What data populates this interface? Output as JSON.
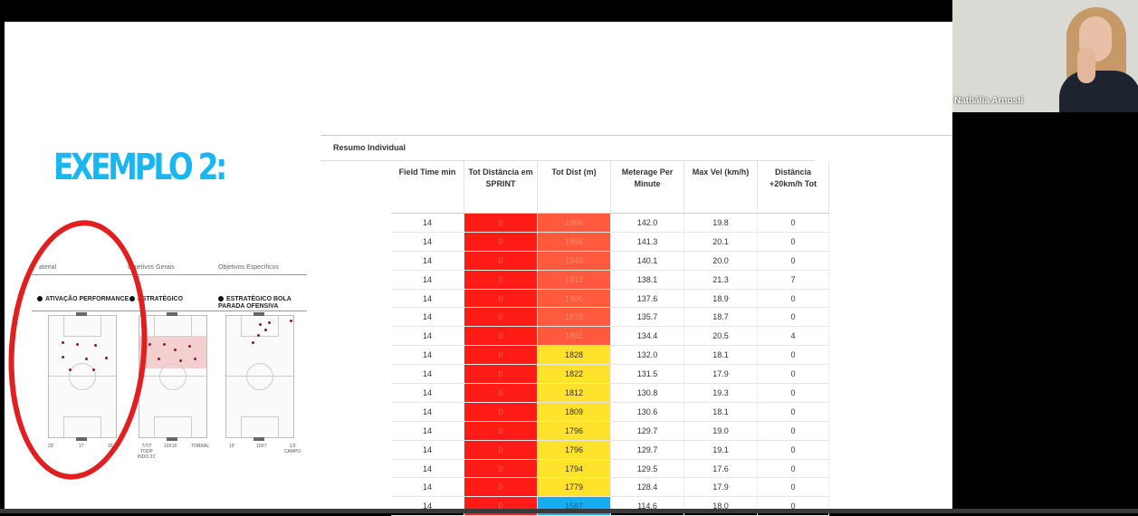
{
  "slide": {
    "title": "EXEMPLO 2:",
    "board": {
      "headers": [
        "aterial",
        "Objetivos Gerais",
        "Objetivos Específicos"
      ],
      "sections": [
        "ATIVAÇÃO PERFORMANCE",
        "ESTRATÉGICO",
        "ESTRATÉGICO BOLA PARADA OFENSIVA"
      ],
      "footer": [
        "20'",
        "17",
        "15'",
        "7/7/7 TODP INDO 21'",
        "10X10",
        "TORRAL",
        "15'",
        "10X7",
        "1/3 CAMPO"
      ]
    },
    "table": {
      "title": "Resumo Individual",
      "columns": [
        "Field Time min",
        "Tot Distância em SPRINT",
        "Tot Dist (m)",
        "Meterage Per Minute",
        "Max Vel (km/h)",
        "Distância +20km/h Tot"
      ],
      "rows": [
        [
          "14",
          "0",
          "1986",
          "142.0",
          "19.8",
          "0"
        ],
        [
          "14",
          "0",
          "1956",
          "141.3",
          "20.1",
          "0"
        ],
        [
          "14",
          "0",
          "1940",
          "140.1",
          "20.0",
          "0"
        ],
        [
          "14",
          "0",
          "1912",
          "138.1",
          "21.3",
          "7"
        ],
        [
          "14",
          "0",
          "1906",
          "137.6",
          "18.9",
          "0"
        ],
        [
          "14",
          "0",
          "1878",
          "135.7",
          "18.7",
          "0"
        ],
        [
          "14",
          "0",
          "1861",
          "134.4",
          "20.5",
          "4"
        ],
        [
          "14",
          "0",
          "1828",
          "132.0",
          "18.1",
          "0"
        ],
        [
          "14",
          "0",
          "1822",
          "131.5",
          "17.9",
          "0"
        ],
        [
          "14",
          "0",
          "1812",
          "130.8",
          "19.3",
          "0"
        ],
        [
          "14",
          "0",
          "1809",
          "130.6",
          "18.1",
          "0"
        ],
        [
          "14",
          "0",
          "1796",
          "129.7",
          "19.0",
          "0"
        ],
        [
          "14",
          "0",
          "1796",
          "129.7",
          "19.1",
          "0"
        ],
        [
          "14",
          "0",
          "1794",
          "129.5",
          "17.6",
          "0"
        ],
        [
          "14",
          "0",
          "1779",
          "128.4",
          "17.9",
          "0"
        ],
        [
          "14",
          "0",
          "1587",
          "114.6",
          "18.0",
          "0"
        ]
      ],
      "dist_colors": [
        "salmon",
        "salmon",
        "salmon",
        "salmon",
        "salmon",
        "salmon",
        "salmon",
        "yellow",
        "yellow",
        "yellow",
        "yellow",
        "yellow",
        "yellow",
        "yellow",
        "yellow",
        "blue"
      ]
    }
  },
  "video": {
    "participant_name": "Nathália Arnosti"
  },
  "colors": {
    "title": "#1ab6f0",
    "sprint": "#ff1c17",
    "high": "#ff5a3d",
    "mid": "#ffe22b",
    "low": "#16aef0",
    "ring": "#e02020"
  }
}
